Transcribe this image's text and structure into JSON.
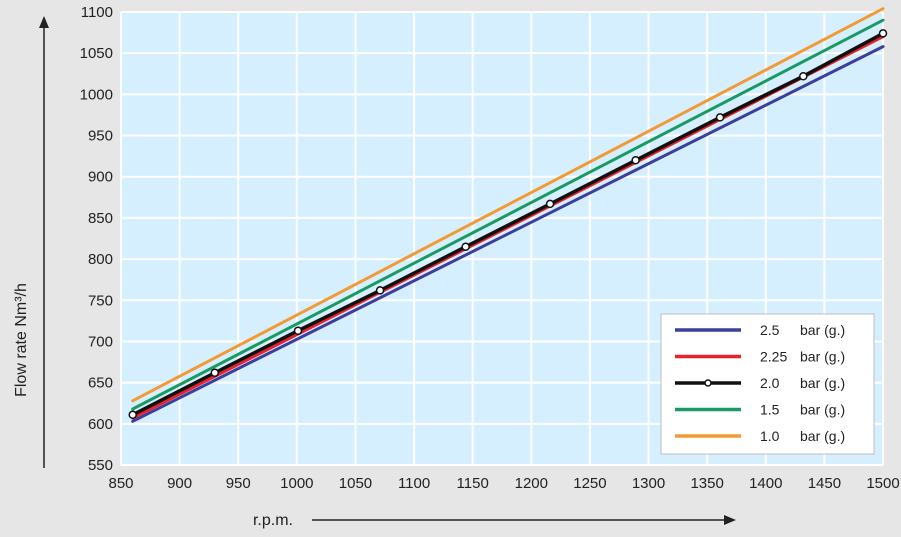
{
  "chart_data": {
    "type": "line",
    "xlabel": "r.p.m.",
    "ylabel": "Flow rate Nm³/h",
    "xlim": [
      850,
      1500
    ],
    "ylim": [
      550,
      1100
    ],
    "xticks": [
      850,
      900,
      950,
      1000,
      1050,
      1100,
      1150,
      1200,
      1250,
      1300,
      1350,
      1400,
      1450,
      1500
    ],
    "yticks": [
      550,
      600,
      650,
      700,
      750,
      800,
      850,
      900,
      950,
      1000,
      1050,
      1100
    ],
    "grid": true,
    "legend_position": "bottom-right",
    "series": [
      {
        "name": "2.5",
        "unit": "bar (g.)",
        "color": "#3c3f9e",
        "x": [
          860,
          1500
        ],
        "y": [
          603,
          1058
        ],
        "markers": false
      },
      {
        "name": "2.25",
        "unit": "bar (g.)",
        "color": "#e8222a",
        "x": [
          860,
          1500
        ],
        "y": [
          607,
          1070
        ],
        "markers": false
      },
      {
        "name": "2.0",
        "unit": "bar (g.)",
        "color": "#111111",
        "x": [
          860,
          930,
          1001,
          1071,
          1144,
          1216,
          1289,
          1361,
          1432,
          1500
        ],
        "y": [
          611,
          662,
          713,
          762,
          815,
          867,
          920,
          972,
          1022,
          1074
        ],
        "markers": true
      },
      {
        "name": "1.5",
        "unit": "bar (g.)",
        "color": "#1a9a63",
        "x": [
          860,
          1500
        ],
        "y": [
          618,
          1090
        ],
        "markers": false
      },
      {
        "name": "1.0",
        "unit": "bar (g.)",
        "color": "#f29a34",
        "x": [
          860,
          1500
        ],
        "y": [
          628,
          1104
        ],
        "markers": false
      }
    ]
  }
}
